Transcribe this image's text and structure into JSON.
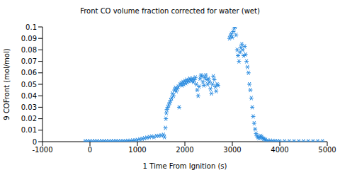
{
  "chart_data": {
    "type": "scatter",
    "title": "Front CO volume fraction corrected for water (wet)",
    "x_label": "1 Time From Ignition (s)",
    "y_label": "9 COFront (mol/mol)",
    "color": "#2b8ce0",
    "marker": "star",
    "grid": false,
    "xlim": [
      -1000,
      5000
    ],
    "xticks": [
      -1000,
      0,
      1000,
      2000,
      3000,
      4000,
      5000
    ],
    "ylim": [
      0,
      0.1
    ],
    "yticks": [
      0,
      0.01,
      0.02,
      0.03,
      0.04,
      0.05,
      0.06,
      0.07,
      0.08,
      0.09,
      0.1
    ],
    "x": [
      -100,
      -50,
      0,
      50,
      100,
      150,
      200,
      250,
      300,
      350,
      400,
      450,
      500,
      550,
      600,
      650,
      700,
      750,
      800,
      850,
      900,
      950,
      1000,
      1050,
      1100,
      1150,
      1200,
      1250,
      1300,
      1350,
      1400,
      1450,
      1500,
      1550,
      1570,
      1590,
      1600,
      1610,
      1620,
      1640,
      1660,
      1680,
      1700,
      1720,
      1740,
      1760,
      1780,
      1800,
      1820,
      1840,
      1860,
      1880,
      1900,
      1920,
      1940,
      1960,
      1980,
      2000,
      2020,
      2040,
      2060,
      2080,
      2100,
      2120,
      2140,
      2160,
      2180,
      2200,
      2220,
      2240,
      2260,
      2280,
      2300,
      2320,
      2340,
      2360,
      2380,
      2400,
      2420,
      2440,
      2460,
      2480,
      2500,
      2520,
      2540,
      2560,
      2580,
      2600,
      2620,
      2640,
      2660,
      2680,
      2700,
      2940,
      2960,
      2980,
      3000,
      3020,
      3040,
      3060,
      3080,
      3100,
      3120,
      3140,
      3160,
      3180,
      3200,
      3220,
      3240,
      3260,
      3280,
      3300,
      3320,
      3340,
      3360,
      3380,
      3400,
      3420,
      3440,
      3460,
      3480,
      3500,
      3520,
      3540,
      3560,
      3580,
      3600,
      3620,
      3640,
      3660,
      3680,
      3700,
      3750,
      3800,
      3850,
      3900,
      3950,
      4000,
      4100,
      4200,
      4300,
      4400,
      4500,
      4600,
      4700,
      4800,
      4900
    ],
    "values": [
      0.0005,
      0.0005,
      0.0005,
      0.0004,
      0.0005,
      0.0005,
      0.0004,
      0.0005,
      0.0005,
      0.0005,
      0.0004,
      0.0005,
      0.0005,
      0.0006,
      0.0005,
      0.0005,
      0.0006,
      0.0006,
      0.0007,
      0.0008,
      0.001,
      0.0012,
      0.0015,
      0.002,
      0.0025,
      0.003,
      0.0035,
      0.004,
      0.0045,
      0.004,
      0.005,
      0.005,
      0.0055,
      0.006,
      0.004,
      0.012,
      0.02,
      0.025,
      0.028,
      0.03,
      0.032,
      0.034,
      0.036,
      0.038,
      0.042,
      0.04,
      0.045,
      0.047,
      0.044,
      0.046,
      0.048,
      0.03,
      0.05,
      0.051,
      0.049,
      0.052,
      0.05,
      0.053,
      0.051,
      0.054,
      0.052,
      0.053,
      0.055,
      0.054,
      0.053,
      0.055,
      0.052,
      0.054,
      0.056,
      0.05,
      0.045,
      0.04,
      0.048,
      0.055,
      0.058,
      0.057,
      0.052,
      0.049,
      0.056,
      0.058,
      0.054,
      0.05,
      0.055,
      0.052,
      0.046,
      0.042,
      0.05,
      0.057,
      0.054,
      0.048,
      0.044,
      0.05,
      0.049,
      0.09,
      0.092,
      0.094,
      0.091,
      0.096,
      0.099,
      0.1,
      0.093,
      0.08,
      0.075,
      0.07,
      0.078,
      0.082,
      0.085,
      0.08,
      0.075,
      0.083,
      0.076,
      0.07,
      0.065,
      0.06,
      0.05,
      0.045,
      0.038,
      0.03,
      0.022,
      0.016,
      0.011,
      0.007,
      0.005,
      0.004,
      0.003,
      0.004,
      0.005,
      0.004,
      0.003,
      0.0025,
      0.002,
      0.0015,
      0.001,
      0.0008,
      0.0007,
      0.0006,
      0.0005,
      0.0005,
      0.0005,
      0.0005,
      0.0005,
      0.0005,
      0.0005,
      0.0005,
      0.0005,
      0.0005,
      0.0005
    ]
  }
}
